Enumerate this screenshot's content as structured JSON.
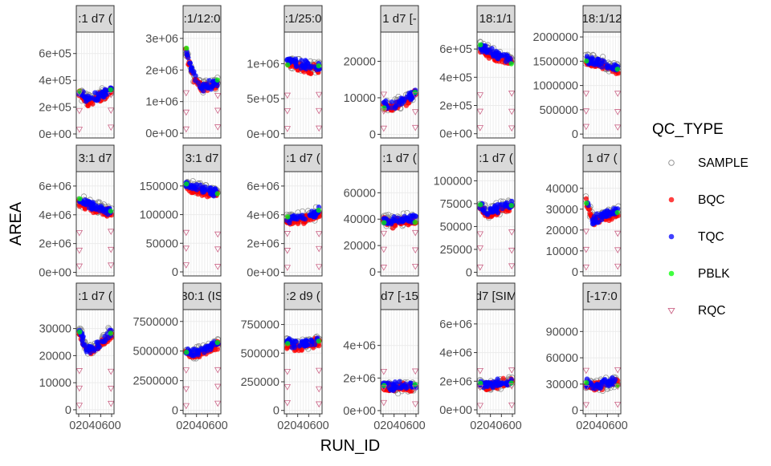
{
  "chart_data": {
    "type": "scatter",
    "xlabel": "RUN_ID",
    "ylabel": "AREA",
    "x_tick_text": "02040600",
    "legend": {
      "title": "QC_TYPE",
      "placement": "right",
      "entries": [
        {
          "label": "SAMPLE",
          "color": "#888888",
          "shape": "open-circle"
        },
        {
          "label": "BQC",
          "color": "#ff0000",
          "shape": "filled-circle"
        },
        {
          "label": "TQC",
          "color": "#0000ff",
          "shape": "filled-circle"
        },
        {
          "label": "PBLK",
          "color": "#00ff00",
          "shape": "filled-circle"
        },
        {
          "label": "RQC",
          "color": "#cc6688",
          "shape": "open-triangle-down"
        }
      ]
    },
    "panels": [
      {
        "strip": ":1 d7 (",
        "ylim": [
          -30000,
          760000
        ],
        "ticks": [
          0,
          200000,
          400000,
          600000
        ],
        "tick_labels": [
          "0e+00",
          "2e+05",
          "4e+05",
          "6e+05"
        ],
        "trend": [
          320000,
          250000,
          270000,
          300000,
          330000
        ]
      },
      {
        "strip": ":1/12:0",
        "ylim": [
          -150000,
          3200000
        ],
        "ticks": [
          0,
          1000000,
          2000000,
          3000000
        ],
        "tick_labels": [
          "0e+00",
          "1e+06",
          "2e+06",
          "3e+06"
        ],
        "trend": [
          2700000,
          1800000,
          1500000,
          1550000,
          1600000
        ]
      },
      {
        "strip": ":1/25:0",
        "ylim": [
          -60000,
          1450000
        ],
        "ticks": [
          0,
          500000,
          1000000
        ],
        "tick_labels": [
          "0e+00",
          "5e+05",
          "1e+06"
        ],
        "trend": [
          1050000,
          1000000,
          980000,
          960000,
          950000
        ]
      },
      {
        "strip": "1 d7 [-",
        "ylim": [
          -1000,
          28000
        ],
        "ticks": [
          0,
          10000,
          20000
        ],
        "tick_labels": [
          "0",
          "10000",
          "20000"
        ],
        "trend": [
          8000,
          7500,
          8500,
          9500,
          12000
        ]
      },
      {
        "strip": "18:1/1",
        "ylim": [
          -30000,
          720000
        ],
        "ticks": [
          0,
          200000,
          400000,
          600000
        ],
        "tick_labels": [
          "0e+00",
          "2e+05",
          "4e+05",
          "6e+05"
        ],
        "trend": [
          620000,
          590000,
          560000,
          540000,
          520000
        ]
      },
      {
        "strip": "18:1/12",
        "ylim": [
          -80000,
          2100000
        ],
        "ticks": [
          0,
          500000,
          1000000,
          1500000,
          2000000
        ],
        "tick_labels": [
          "0",
          "500000",
          "1000000",
          "1500000",
          "2000000"
        ],
        "trend": [
          1550000,
          1500000,
          1450000,
          1400000,
          1350000
        ]
      },
      {
        "strip": "3:1 d7",
        "ylim": [
          -250000,
          7000000
        ],
        "ticks": [
          0,
          2000000,
          4000000,
          6000000
        ],
        "tick_labels": [
          "0e+00",
          "2e+06",
          "4e+06",
          "6e+06"
        ],
        "trend": [
          5000000,
          4800000,
          4500000,
          4400000,
          4300000
        ]
      },
      {
        "strip": "3:1 d7",
        "ylim": [
          -7000,
          175000
        ],
        "ticks": [
          0,
          50000,
          100000,
          150000
        ],
        "tick_labels": [
          "0",
          "50000",
          "100000",
          "150000"
        ],
        "trend": [
          152000,
          148000,
          145000,
          142000,
          140000
        ]
      },
      {
        "strip": ":1 d7 (",
        "ylim": [
          -250000,
          7000000
        ],
        "ticks": [
          0,
          2000000,
          4000000,
          6000000
        ],
        "tick_labels": [
          "0e+00",
          "2e+06",
          "4e+06",
          "6e+06"
        ],
        "trend": [
          3800000,
          3700000,
          3800000,
          4000000,
          4200000
        ]
      },
      {
        "strip": ":1 d7 (",
        "ylim": [
          -3000,
          76000
        ],
        "ticks": [
          0,
          20000,
          40000,
          60000
        ],
        "tick_labels": [
          "0",
          "20000",
          "40000",
          "60000"
        ],
        "trend": [
          40000,
          38000,
          39000,
          40000,
          41000
        ]
      },
      {
        "strip": ":1 d7 (",
        "ylim": [
          -4000,
          110000
        ],
        "ticks": [
          0,
          25000,
          50000,
          75000,
          100000
        ],
        "tick_labels": [
          "0",
          "25000",
          "50000",
          "75000",
          "100000"
        ],
        "trend": [
          75000,
          65000,
          70000,
          72000,
          75000
        ]
      },
      {
        "strip": "1 d7 (",
        "ylim": [
          -2000,
          48000
        ],
        "ticks": [
          0,
          10000,
          20000,
          30000,
          40000
        ],
        "tick_labels": [
          "0",
          "10000",
          "20000",
          "30000",
          "40000"
        ],
        "trend": [
          35000,
          24000,
          27000,
          28000,
          29000
        ]
      },
      {
        "strip": ":1 d7 (",
        "ylim": [
          -1500,
          37000
        ],
        "ticks": [
          0,
          10000,
          20000,
          30000
        ],
        "tick_labels": [
          "0",
          "10000",
          "20000",
          "30000"
        ],
        "trend": [
          30000,
          22000,
          23000,
          26000,
          29000
        ]
      },
      {
        "strip": "30:1 (IS",
        "ylim": [
          -300000,
          8500000
        ],
        "ticks": [
          0,
          2500000,
          5000000,
          7500000
        ],
        "tick_labels": [
          "0",
          "2500000",
          "5000000",
          "7500000"
        ],
        "trend": [
          5000000,
          4800000,
          5000000,
          5400000,
          5800000
        ]
      },
      {
        "strip": ":2 d9 (",
        "ylim": [
          -30000,
          880000
        ],
        "ticks": [
          0,
          250000,
          500000,
          750000
        ],
        "tick_labels": [
          "0",
          "250000",
          "500000",
          "750000"
        ],
        "trend": [
          600000,
          570000,
          580000,
          600000,
          620000
        ]
      },
      {
        "strip": "d7 [-15",
        "ylim": [
          -200000,
          6200000
        ],
        "ticks": [
          0,
          2000000,
          4000000
        ],
        "tick_labels": [
          "0e+00",
          "2e+06",
          "4e+06"
        ],
        "trend": [
          1500000,
          1450000,
          1450000,
          1500000,
          1550000
        ]
      },
      {
        "strip": "d7 [SIM",
        "ylim": [
          -280000,
          7000000
        ],
        "ticks": [
          0,
          2000000,
          4000000,
          6000000
        ],
        "tick_labels": [
          "0e+00",
          "2e+06",
          "4e+06",
          "6e+06"
        ],
        "trend": [
          1800000,
          1700000,
          1800000,
          1900000,
          2000000
        ]
      },
      {
        "strip": "[-17:0",
        "ylim": [
          -4000,
          115000
        ],
        "ticks": [
          0,
          30000,
          60000,
          90000
        ],
        "tick_labels": [
          "0",
          "30000",
          "60000",
          "90000"
        ],
        "trend": [
          30000,
          28000,
          30000,
          32000,
          34000
        ]
      }
    ]
  }
}
